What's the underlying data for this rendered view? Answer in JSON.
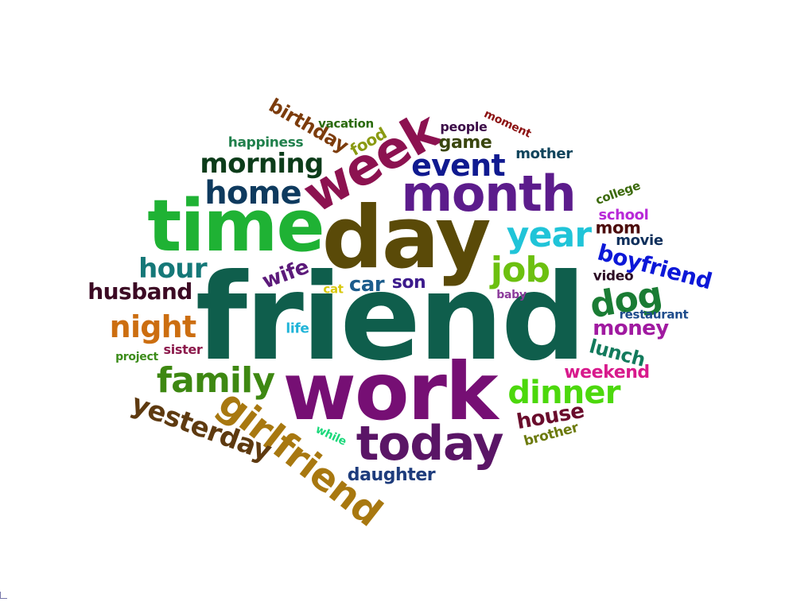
{
  "words": {
    "friend": {
      "text": "friend",
      "color": "#0f5e4c"
    },
    "work": {
      "text": "work",
      "color": "#760f74"
    },
    "day": {
      "text": "day",
      "color": "#5a4a08"
    },
    "time": {
      "text": "time",
      "color": "#1fb234"
    },
    "month": {
      "text": "month",
      "color": "#5c1c8c"
    },
    "week": {
      "text": "week",
      "color": "#8c1250"
    },
    "today": {
      "text": "today",
      "color": "#5a1566"
    },
    "girlfriend": {
      "text": "girlfriend",
      "color": "#a87810"
    },
    "yesterday": {
      "text": "yesterday",
      "color": "#5e3a10"
    },
    "family": {
      "text": "family",
      "color": "#3e8812"
    },
    "night": {
      "text": "night",
      "color": "#cc6e10"
    },
    "hour": {
      "text": "hour",
      "color": "#157878"
    },
    "husband": {
      "text": "husband",
      "color": "#3c0a24"
    },
    "home": {
      "text": "home",
      "color": "#0e3a5e"
    },
    "morning": {
      "text": "morning",
      "color": "#0c3c1a"
    },
    "birthday": {
      "text": "birthday",
      "color": "#7c3c0c"
    },
    "happiness": {
      "text": "happiness",
      "color": "#20804c"
    },
    "vacation": {
      "text": "vacation",
      "color": "#2a6a0c"
    },
    "food": {
      "text": "food",
      "color": "#8a9a12"
    },
    "event": {
      "text": "event",
      "color": "#101a90"
    },
    "game": {
      "text": "game",
      "color": "#3a460e"
    },
    "people": {
      "text": "people",
      "color": "#3c0c48"
    },
    "moment": {
      "text": "moment",
      "color": "#8c1212"
    },
    "mother": {
      "text": "mother",
      "color": "#10445c"
    },
    "year": {
      "text": "year",
      "color": "#20c4d8"
    },
    "job": {
      "text": "job",
      "color": "#6cc010"
    },
    "college": {
      "text": "college",
      "color": "#3c6a0c"
    },
    "school": {
      "text": "school",
      "color": "#b82ad8"
    },
    "mom": {
      "text": "mom",
      "color": "#4c0c0c"
    },
    "movie": {
      "text": "movie",
      "color": "#10305c"
    },
    "boyfriend": {
      "text": "boyfriend",
      "color": "#0c18d8"
    },
    "video": {
      "text": "video",
      "color": "#2c0c24"
    },
    "dog": {
      "text": "dog",
      "color": "#1a7c34"
    },
    "baby": {
      "text": "baby",
      "color": "#8c3c9c"
    },
    "restaurant": {
      "text": "restaurant",
      "color": "#1e4c8c"
    },
    "money": {
      "text": "money",
      "color": "#a01aa0"
    },
    "lunch": {
      "text": "lunch",
      "color": "#127a5c"
    },
    "weekend": {
      "text": "weekend",
      "color": "#d81a8c"
    },
    "dinner": {
      "text": "dinner",
      "color": "#4cd80c"
    },
    "house": {
      "text": "house",
      "color": "#6a0c2c"
    },
    "brother": {
      "text": "brother",
      "color": "#6c7a0c"
    },
    "daughter": {
      "text": "daughter",
      "color": "#1e3c7c"
    },
    "while": {
      "text": "while",
      "color": "#1ad87a"
    },
    "wife": {
      "text": "wife",
      "color": "#5c1a7a"
    },
    "car": {
      "text": "car",
      "color": "#1c5c8c"
    },
    "son": {
      "text": "son",
      "color": "#3c1a8c"
    },
    "cat": {
      "text": "cat",
      "color": "#d8c80c"
    },
    "life": {
      "text": "life",
      "color": "#20b4d8"
    },
    "sister": {
      "text": "sister",
      "color": "#8c1a4c"
    },
    "project": {
      "text": "project",
      "color": "#3c8c1a"
    }
  }
}
